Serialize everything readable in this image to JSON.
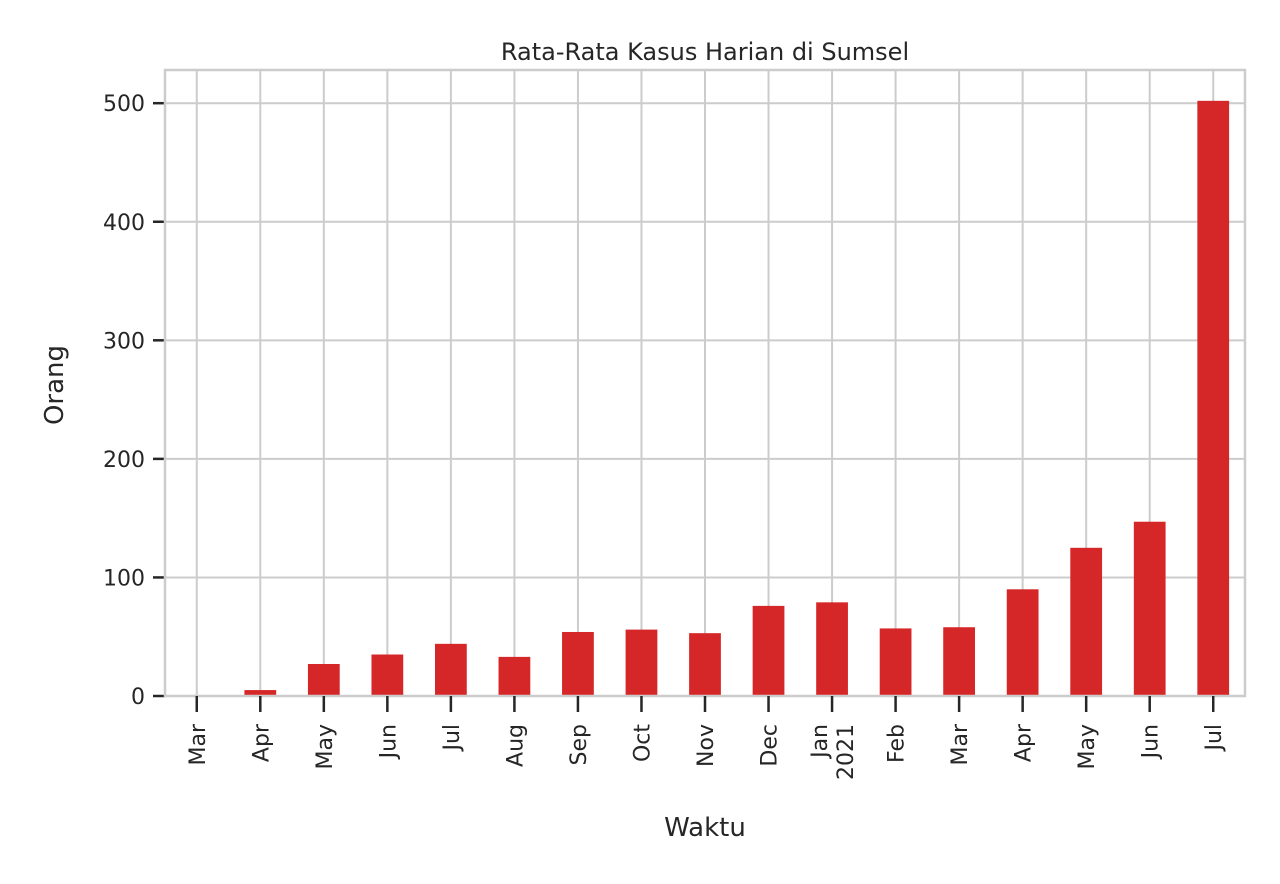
{
  "chart_data": {
    "type": "bar",
    "title": "Rata-Rata Kasus Harian di Sumsel",
    "xlabel": "Waktu",
    "ylabel": "Orang",
    "ylim": [
      0,
      528
    ],
    "yticks": [
      0,
      100,
      200,
      300,
      400,
      500
    ],
    "grid": true,
    "bar_color": "#d62728",
    "categories": [
      "Mar",
      "Apr",
      "May",
      "Jun",
      "Jul",
      "Aug",
      "Sep",
      "Oct",
      "Nov",
      "Dec",
      "Jan\n2021",
      "Feb",
      "Mar",
      "Apr",
      "May",
      "Jun",
      "Jul"
    ],
    "values": [
      0.5,
      5,
      27,
      35,
      44,
      33,
      54,
      56,
      53,
      76,
      79,
      57,
      58,
      90,
      125,
      147,
      502
    ]
  }
}
